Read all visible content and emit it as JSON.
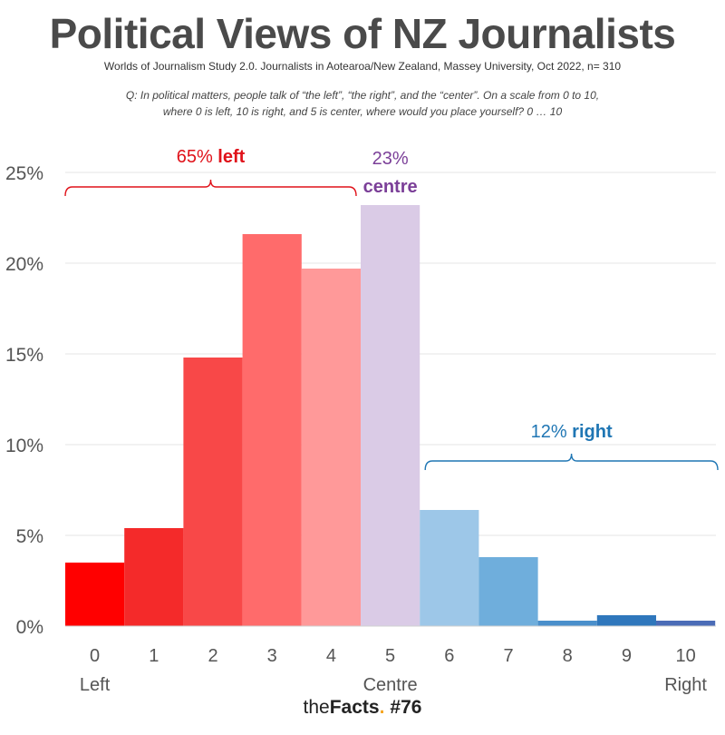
{
  "chart_data": {
    "type": "bar",
    "title": "Political Views of NZ Journalists",
    "subtitle": "Worlds of Journalism Study 2.0. Journalists in Aotearoa/New Zealand, Massey University, Oct 2022, n= 310",
    "question_line1": "Q: In political matters, people talk of “the left”, “the right”, and the “center”. On a scale from 0 to 10,",
    "question_line2": "where 0 is left, 10 is right, and 5 is center, where would you place yourself? 0 … 10",
    "categories": [
      "0",
      "1",
      "2",
      "3",
      "4",
      "5",
      "6",
      "7",
      "8",
      "9",
      "10"
    ],
    "values": [
      3.5,
      5.4,
      14.8,
      21.6,
      19.7,
      23.2,
      6.4,
      3.8,
      0.3,
      0.6,
      0.3
    ],
    "bar_colors": [
      "#ff0000",
      "#f42a2a",
      "#f84848",
      "#ff6b6b",
      "#ff9999",
      "#dacbe6",
      "#9dc7e8",
      "#6faedc",
      "#4a8fcb",
      "#2f77bc",
      "#4b6cb7"
    ],
    "ylim": [
      0,
      25
    ],
    "yticks": [
      "0%",
      "5%",
      "10%",
      "15%",
      "20%",
      "25%"
    ],
    "ytick_values": [
      0,
      5,
      10,
      15,
      20,
      25
    ],
    "x_end_labels": {
      "left": "Left",
      "centre": "Centre",
      "right": "Right"
    },
    "grid": true,
    "annotations": {
      "left_pct": "65%",
      "left_word": "left",
      "left_color": "#e0121a",
      "centre_pct": "23%",
      "centre_word": "centre",
      "centre_color": "#7b3f98",
      "right_pct": "12%",
      "right_word": "right",
      "right_color": "#1f76b4"
    }
  },
  "footer": {
    "brand_the": "the",
    "brand_facts": "Facts",
    "brand_dot": ".",
    "number": "#76"
  }
}
